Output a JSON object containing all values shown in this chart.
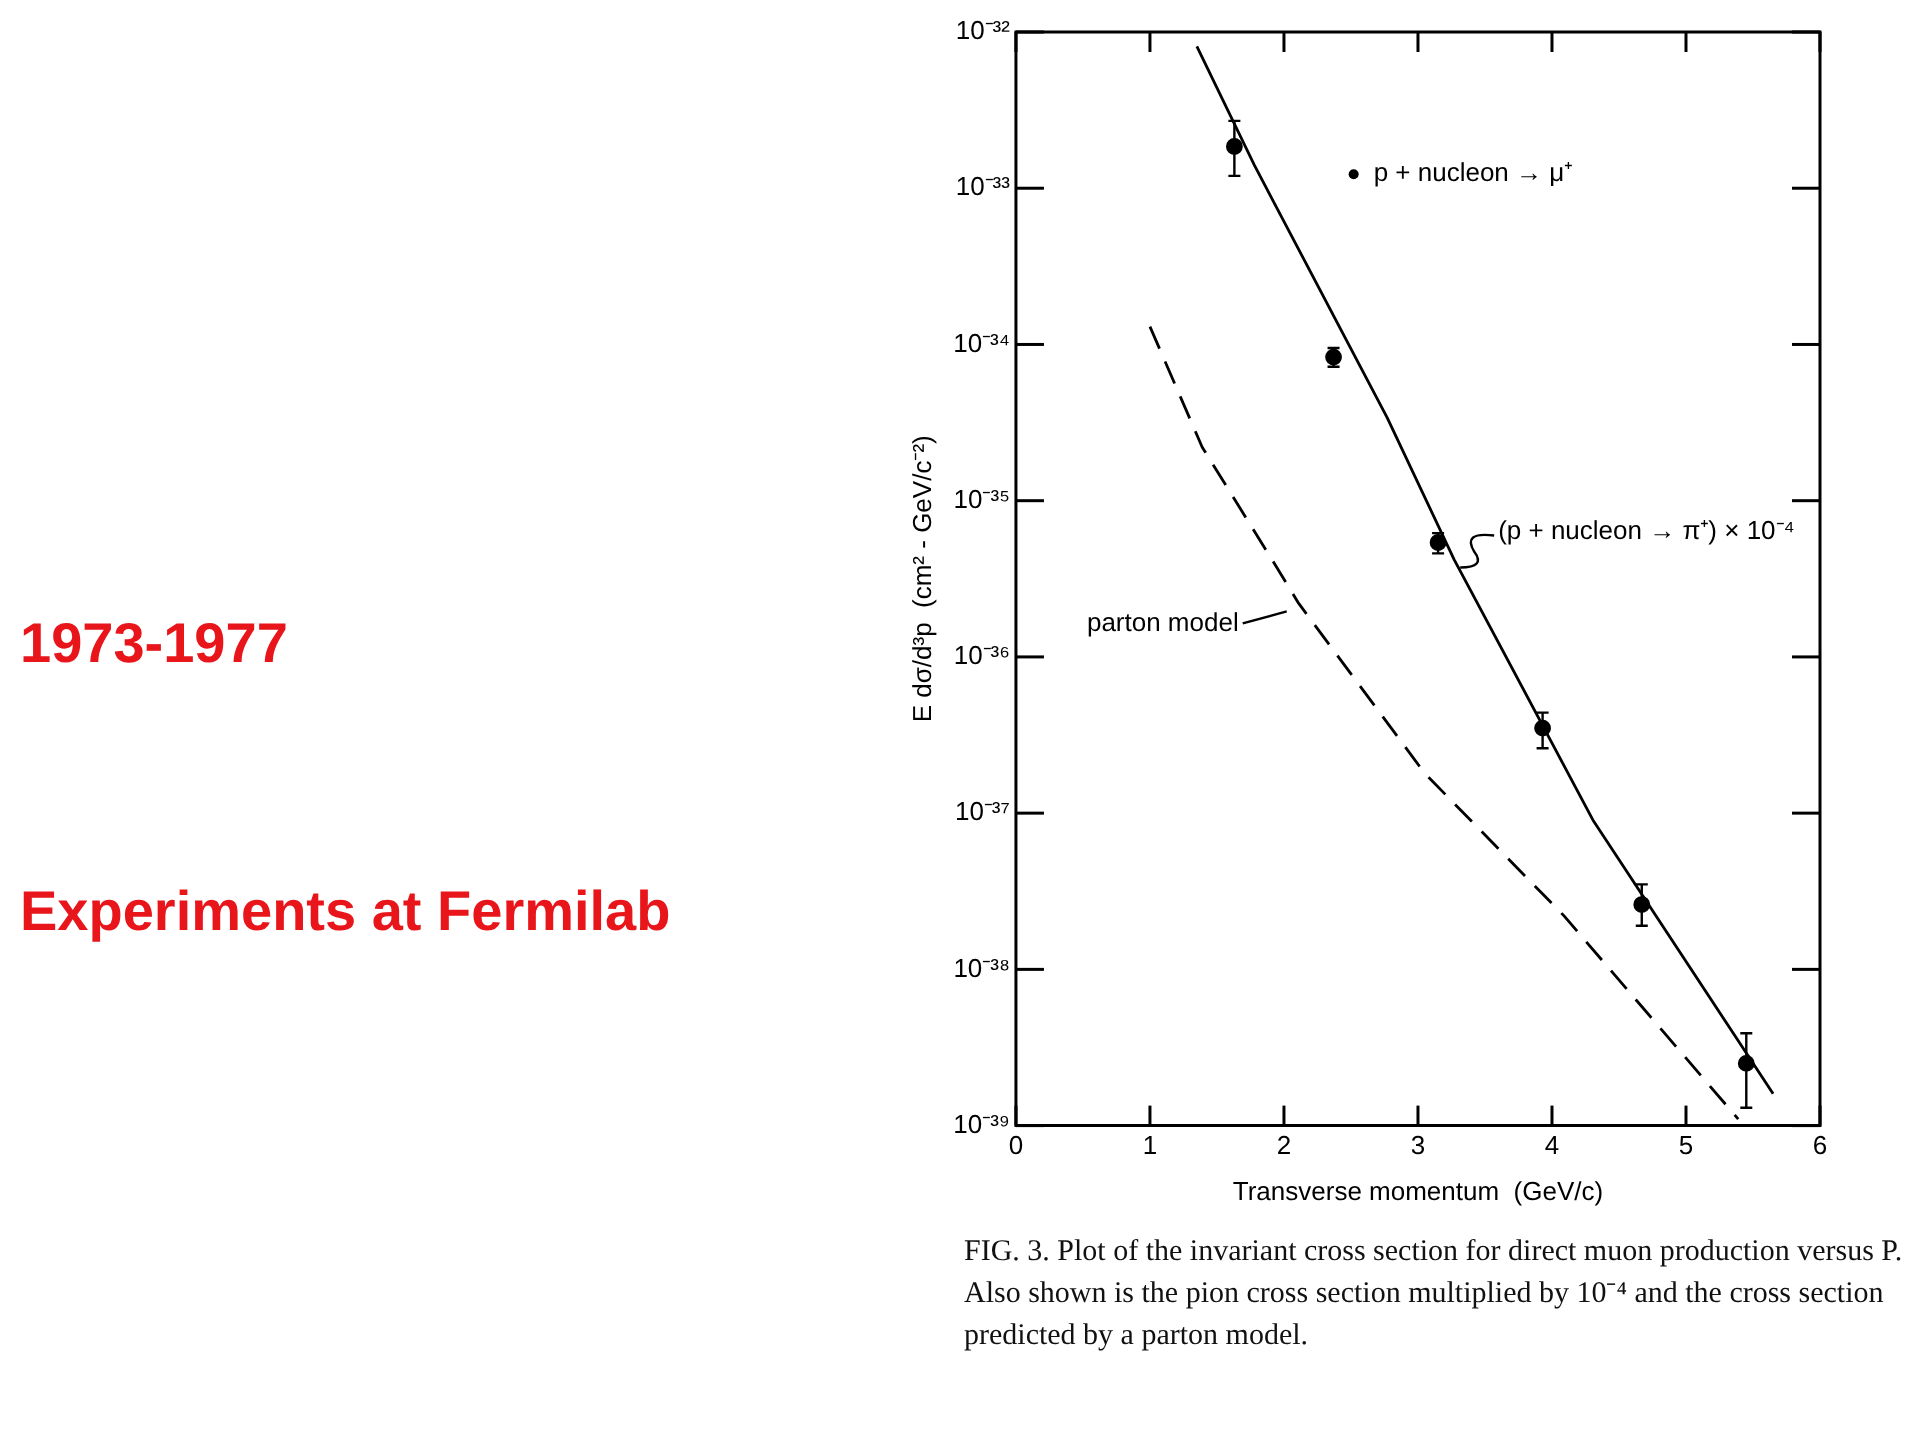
{
  "chart_data": {
    "type": "scatter",
    "title": "1973-1977",
    "subtitle": "Experiments at Fermilab",
    "xlabel": "Transverse momentum  (GeV/c)",
    "ylabel": "E dσ/d³p  (cm² - GeV/c⁻²)",
    "series": [
      {
        "name": "p + nucleon → μ⁺",
        "color": "#000000",
        "marker": "circle",
        "x": [
          1.63,
          2.37,
          3.15,
          3.93,
          4.67,
          5.45
        ],
        "values": [
          1.85e-33,
          8.3e-35,
          5.4e-36,
          3.5e-37,
          2.6e-38,
          2.5e-39
        ],
        "errors": [
          [
            1.2e-33,
            2.7e-33
          ],
          [
            7.2e-35,
            9.5e-35
          ],
          [
            4.6e-36,
            6.2e-36
          ],
          [
            2.6e-37,
            4.4e-37
          ],
          [
            1.9e-38,
            3.5e-38
          ],
          [
            1.3e-39,
            3.9e-39
          ]
        ]
      },
      {
        "name": "(p + nucleon → π⁺) × 10⁻⁴",
        "type": "line",
        "color": "#000000",
        "line_style": "solid",
        "marker": "none",
        "x": [
          1.35,
          1.78,
          2.77,
          3.27,
          4.31,
          5.65
        ],
        "values": [
          8.1e-33,
          1.4e-33,
          3.4e-35,
          4.2e-36,
          8.9e-38,
          1.6e-39
        ]
      },
      {
        "name": "parton model",
        "type": "line",
        "color": "#000000",
        "line_style": "dashed",
        "marker": "none",
        "x": [
          1.0,
          1.39,
          1.91,
          2.11,
          3.05,
          4.09,
          5.39
        ],
        "values": [
          1.3e-34,
          2.2e-35,
          4.2e-36,
          2.2e-36,
          1.8e-37,
          2.2e-38,
          1.1e-39
        ]
      }
    ],
    "log": "y",
    "xlim": [
      0,
      6
    ],
    "xticks": [
      0,
      1,
      2,
      3,
      4,
      5,
      6
    ],
    "ylim": [
      1e-39,
      1e-32
    ],
    "yticks": [
      {
        "value": 1e-39,
        "label": "10⁻³⁹"
      },
      {
        "value": 1e-38,
        "label": "10⁻³⁸"
      },
      {
        "value": 1e-37,
        "label": "10⁻³⁷"
      },
      {
        "value": 1e-36,
        "label": "10⁻³⁶"
      },
      {
        "value": 1e-35,
        "label": "10⁻³⁵"
      },
      {
        "value": 1e-34,
        "label": "10⁻³⁴"
      },
      {
        "value": 1e-33,
        "label": "10⁻³³"
      },
      {
        "value": 1e-32,
        "label": "10⁻³²"
      }
    ],
    "grid": false,
    "legend": "top right",
    "annotations": [
      "FIG. 3.  Plot of the invariant cross section for direct muon production versus P.  Also shown is the pion cross section multiplied by 10⁻⁴ and the cross section predicted by a parton model."
    ]
  }
}
